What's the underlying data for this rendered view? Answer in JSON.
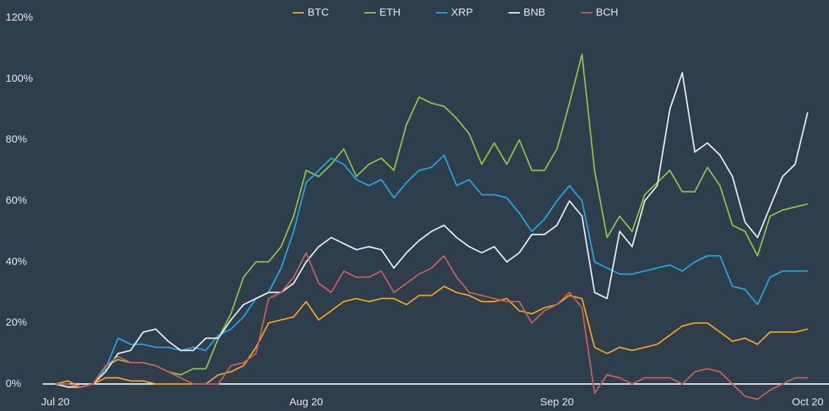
{
  "chart_data": {
    "type": "line",
    "categories": [
      "Jul 20",
      null,
      null,
      null,
      null,
      null,
      null,
      null,
      null,
      null,
      null,
      null,
      null,
      null,
      null,
      null,
      null,
      null,
      null,
      null,
      "Aug 20",
      null,
      null,
      null,
      null,
      null,
      null,
      null,
      null,
      null,
      null,
      null,
      null,
      null,
      null,
      null,
      null,
      null,
      null,
      null,
      "Sep 20",
      null,
      null,
      null,
      null,
      null,
      null,
      null,
      null,
      null,
      null,
      null,
      null,
      null,
      null,
      null,
      null,
      null,
      null,
      null,
      "Oct 20"
    ],
    "series": [
      {
        "name": "BTC",
        "color": "#f5a11c",
        "values": [
          0,
          1,
          -1,
          0,
          2,
          2,
          1,
          1,
          0,
          0,
          0,
          0,
          0,
          3,
          4,
          6,
          12,
          20,
          21,
          22,
          27,
          21,
          24,
          27,
          28,
          27,
          28,
          28,
          26,
          29,
          29,
          32,
          30,
          29,
          27,
          27,
          28,
          24,
          23,
          25,
          26,
          29,
          28,
          12,
          10,
          12,
          11,
          12,
          13,
          16,
          19,
          20,
          20,
          17,
          14,
          15,
          13,
          17,
          17,
          17,
          18
        ]
      },
      {
        "name": "ETH",
        "color": "#8dc63f",
        "values": [
          0,
          -1,
          -1,
          0,
          6,
          8,
          7,
          7,
          6,
          4,
          3,
          5,
          5,
          15,
          23,
          35,
          40,
          40,
          45,
          55,
          70,
          68,
          72,
          77,
          68,
          72,
          74,
          70,
          85,
          94,
          92,
          91,
          87,
          82,
          72,
          79,
          72,
          80,
          70,
          70,
          77,
          92,
          108,
          70,
          48,
          55,
          50,
          62,
          66,
          70,
          63,
          63,
          71,
          65,
          52,
          50,
          42,
          55,
          57,
          58,
          59
        ]
      },
      {
        "name": "XRP",
        "color": "#1ea7e1",
        "values": [
          0,
          0,
          -1,
          0,
          5,
          15,
          13,
          13,
          12,
          12,
          11,
          12,
          11,
          16,
          18,
          22,
          28,
          30,
          38,
          50,
          66,
          70,
          74,
          72,
          67,
          65,
          67,
          61,
          66,
          70,
          71,
          75,
          65,
          67,
          62,
          62,
          61,
          56,
          50,
          54,
          60,
          65,
          60,
          40,
          38,
          36,
          36,
          37,
          38,
          39,
          37,
          40,
          42,
          42,
          32,
          31,
          26,
          35,
          37,
          37,
          37
        ]
      },
      {
        "name": "BNB",
        "color": "#e8eaec",
        "values": [
          0,
          -1,
          -1,
          0,
          4,
          10,
          11,
          17,
          18,
          14,
          11,
          11,
          15,
          15,
          21,
          26,
          28,
          30,
          30,
          33,
          40,
          45,
          48,
          46,
          44,
          45,
          44,
          38,
          43,
          47,
          50,
          52,
          48,
          45,
          43,
          45,
          40,
          43,
          49,
          49,
          52,
          60,
          55,
          30,
          28,
          50,
          45,
          60,
          65,
          90,
          102,
          76,
          79,
          75,
          68,
          53,
          48,
          58,
          68,
          72,
          89
        ]
      },
      {
        "name": "BCH",
        "color": "#c8605a",
        "values": [
          0,
          0,
          -1,
          0,
          6,
          9,
          7,
          7,
          6,
          4,
          2,
          0,
          0,
          0,
          6,
          7,
          10,
          28,
          30,
          35,
          43,
          33,
          30,
          37,
          35,
          35,
          37,
          30,
          33,
          36,
          38,
          42,
          35,
          30,
          29,
          28,
          27,
          27,
          20,
          24,
          26,
          30,
          25,
          -3,
          3,
          2,
          0,
          2,
          2,
          2,
          0,
          4,
          5,
          4,
          0,
          -4,
          -5,
          -2,
          0,
          2,
          2
        ]
      }
    ],
    "ylim": [
      0,
      120
    ],
    "yticks": [
      {
        "value": 0,
        "label": "0%"
      },
      {
        "value": 20,
        "label": "20%"
      },
      {
        "value": 40,
        "label": "40%"
      },
      {
        "value": 60,
        "label": "60%"
      },
      {
        "value": 80,
        "label": "80%"
      },
      {
        "value": 100,
        "label": "100%"
      },
      {
        "value": 120,
        "label": "120%"
      }
    ],
    "grid": false,
    "legend": "top"
  }
}
